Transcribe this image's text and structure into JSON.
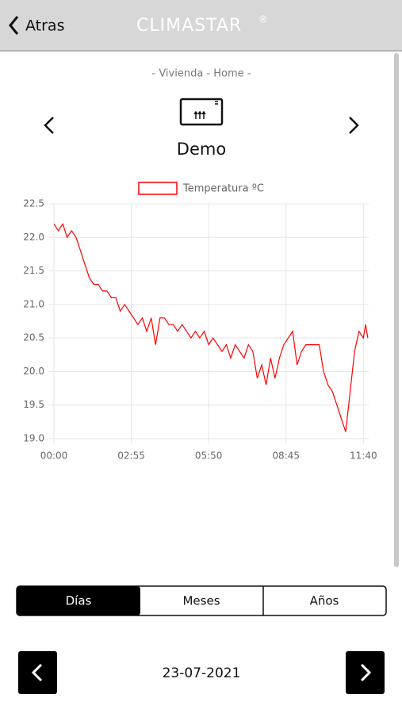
{
  "header": {
    "back": "Atras",
    "brand": "CLIMASTAR",
    "brand_mark": "®"
  },
  "location": "- Vivienda - Home -",
  "device": "Demo",
  "tabs": [
    "Días",
    "Meses",
    "Años"
  ],
  "date": "23-07-2021",
  "chart_data": {
    "type": "line",
    "x": [
      0,
      10,
      20,
      30,
      40,
      50,
      60,
      70,
      80,
      90,
      100,
      110,
      120,
      130,
      140,
      150,
      160,
      170,
      180,
      190,
      200,
      210,
      220,
      230,
      240,
      250,
      260,
      270,
      280,
      290,
      300,
      310,
      320,
      330,
      340,
      350,
      360,
      370,
      380,
      390,
      400,
      410,
      420,
      430,
      440,
      450,
      460,
      470,
      480,
      490,
      500,
      510,
      520,
      530,
      540,
      550,
      560,
      570,
      580,
      590,
      600,
      610,
      620,
      630,
      640,
      650,
      660,
      670,
      680,
      690,
      700,
      705,
      710
    ],
    "series": [
      {
        "name": "Temperatura ºC",
        "color": "#ff0000",
        "values": [
          22.2,
          22.1,
          22.2,
          22.0,
          22.1,
          22.0,
          21.8,
          21.6,
          21.4,
          21.3,
          21.3,
          21.2,
          21.2,
          21.1,
          21.1,
          20.9,
          21.0,
          20.9,
          20.8,
          20.7,
          20.8,
          20.6,
          20.8,
          20.4,
          20.8,
          20.8,
          20.7,
          20.7,
          20.6,
          20.7,
          20.6,
          20.5,
          20.6,
          20.5,
          20.6,
          20.4,
          20.5,
          20.4,
          20.3,
          20.4,
          20.2,
          20.4,
          20.3,
          20.2,
          20.4,
          20.3,
          19.9,
          20.1,
          19.8,
          20.2,
          19.9,
          20.2,
          20.4,
          20.5,
          20.6,
          20.1,
          20.3,
          20.4,
          20.4,
          20.4,
          20.4,
          20.0,
          19.8,
          19.7,
          19.5,
          19.3,
          19.1,
          19.7,
          20.3,
          20.6,
          20.5,
          20.7,
          20.5
        ]
      }
    ],
    "xlim": [
      0,
      712
    ],
    "xticks": [
      {
        "value": 0,
        "label": "00:00"
      },
      {
        "value": 175,
        "label": "02:55"
      },
      {
        "value": 350,
        "label": "05:50"
      },
      {
        "value": 525,
        "label": "08:45"
      },
      {
        "value": 700,
        "label": "11:40"
      }
    ],
    "ylim": [
      19.0,
      22.5
    ],
    "yticks": [
      {
        "value": 19,
        "label": "19.0"
      },
      19.5,
      {
        "value": 20,
        "label": "20.0"
      },
      20.5,
      {
        "value": 21,
        "label": "21.0"
      },
      21.5,
      {
        "value": 22,
        "label": "22.0"
      },
      22.5
    ],
    "grid": true
  }
}
